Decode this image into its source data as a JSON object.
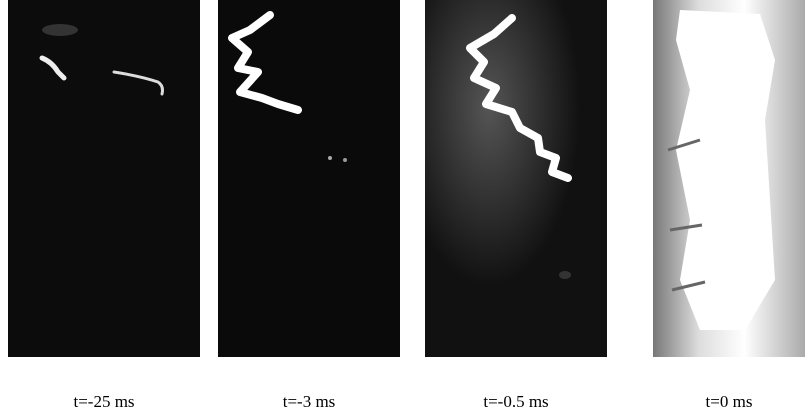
{
  "panels": [
    {
      "caption": "t=-25 ms"
    },
    {
      "caption": "t=-3 ms"
    },
    {
      "caption": "t=-0.5 ms"
    },
    {
      "caption": "t=0 ms"
    }
  ]
}
